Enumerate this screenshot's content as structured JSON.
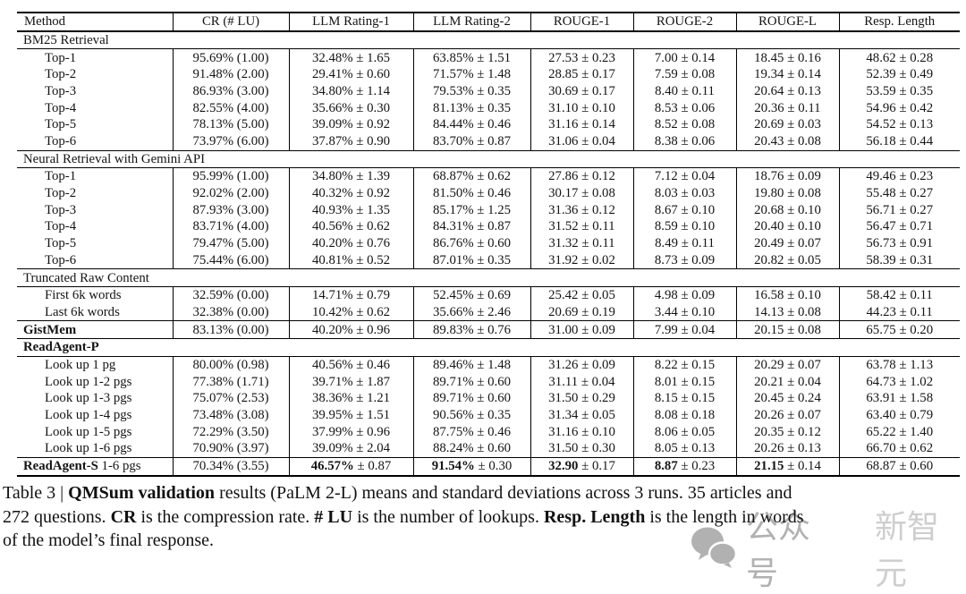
{
  "table": {
    "columns": [
      "Method",
      "CR (# LU)",
      "LLM Rating-1",
      "LLM Rating-2",
      "ROUGE-1",
      "ROUGE-2",
      "ROUGE-L",
      "Resp. Length"
    ],
    "rows": [
      {
        "kind": "section",
        "label": "BM25 Retrieval",
        "rule_below": true
      },
      {
        "kind": "data",
        "indent": true,
        "cells": [
          "Top-1",
          "95.69% (1.00)",
          "32.48% ± 1.65",
          "63.85% ± 1.51",
          "27.53 ± 0.23",
          "7.00 ± 0.14",
          "18.45 ± 0.16",
          "48.62 ± 0.28"
        ]
      },
      {
        "kind": "data",
        "indent": true,
        "cells": [
          "Top-2",
          "91.48% (2.00)",
          "29.41% ± 0.60",
          "71.57% ± 1.48",
          "28.85 ± 0.17",
          "7.59 ± 0.08",
          "19.34 ± 0.14",
          "52.39 ± 0.49"
        ]
      },
      {
        "kind": "data",
        "indent": true,
        "cells": [
          "Top-3",
          "86.93% (3.00)",
          "34.80% ± 1.14",
          "79.53% ± 0.35",
          "30.69 ± 0.17",
          "8.40 ± 0.11",
          "20.64 ± 0.13",
          "53.59 ± 0.35"
        ]
      },
      {
        "kind": "data",
        "indent": true,
        "cells": [
          "Top-4",
          "82.55% (4.00)",
          "35.66% ± 0.30",
          "81.13% ± 0.35",
          "31.10 ± 0.10",
          "8.53 ± 0.06",
          "20.36 ± 0.11",
          "54.96 ± 0.42"
        ]
      },
      {
        "kind": "data",
        "indent": true,
        "cells": [
          "Top-5",
          "78.13% (5.00)",
          "39.09% ± 0.92",
          "84.44% ± 0.46",
          "31.16 ± 0.14",
          "8.52 ± 0.08",
          "20.69 ± 0.03",
          "54.52 ± 0.13"
        ]
      },
      {
        "kind": "data",
        "indent": true,
        "rule_below": true,
        "cells": [
          "Top-6",
          "73.97% (6.00)",
          "37.87% ± 0.90",
          "83.70% ± 0.87",
          "31.06 ± 0.04",
          "8.38 ± 0.06",
          "20.43 ± 0.08",
          "56.18 ± 0.44"
        ]
      },
      {
        "kind": "section",
        "label": "Neural Retrieval with Gemini API",
        "rule_below": true
      },
      {
        "kind": "data",
        "indent": true,
        "cells": [
          "Top-1",
          "95.99% (1.00)",
          "34.80% ± 1.39",
          "68.87% ± 0.62",
          "27.86 ± 0.12",
          "7.12 ± 0.04",
          "18.76 ± 0.09",
          "49.46 ± 0.23"
        ]
      },
      {
        "kind": "data",
        "indent": true,
        "cells": [
          "Top-2",
          "92.02% (2.00)",
          "40.32% ± 0.92",
          "81.50% ± 0.46",
          "30.17 ± 0.08",
          "8.03 ± 0.03",
          "19.80 ± 0.08",
          "55.48 ± 0.27"
        ]
      },
      {
        "kind": "data",
        "indent": true,
        "cells": [
          "Top-3",
          "87.93% (3.00)",
          "40.93% ± 1.35",
          "85.17% ± 1.25",
          "31.36 ± 0.12",
          "8.67 ± 0.10",
          "20.68 ± 0.10",
          "56.71 ± 0.27"
        ]
      },
      {
        "kind": "data",
        "indent": true,
        "cells": [
          "Top-4",
          "83.71% (4.00)",
          "40.56% ± 0.62",
          "84.31% ± 0.87",
          "31.52 ± 0.11",
          "8.59 ± 0.10",
          "20.40 ± 0.10",
          "56.47 ± 0.71"
        ]
      },
      {
        "kind": "data",
        "indent": true,
        "cells": [
          "Top-5",
          "79.47% (5.00)",
          "40.20% ± 0.76",
          "86.76% ± 0.60",
          "31.32 ± 0.11",
          "8.49 ± 0.11",
          "20.49 ± 0.07",
          "56.73 ± 0.91"
        ]
      },
      {
        "kind": "data",
        "indent": true,
        "rule_below": true,
        "cells": [
          "Top-6",
          "75.44% (6.00)",
          "40.81% ± 0.52",
          "87.01% ± 0.35",
          "31.92 ± 0.02",
          "8.73 ± 0.09",
          "20.82 ± 0.05",
          "58.39 ± 0.31"
        ]
      },
      {
        "kind": "section",
        "label": "Truncated Raw Content",
        "rule_below": true
      },
      {
        "kind": "data",
        "indent": true,
        "cells": [
          "First 6k words",
          "32.59% (0.00)",
          "14.71% ± 0.79",
          "52.45% ± 0.69",
          "25.42 ± 0.05",
          "4.98 ± 0.09",
          "16.58 ± 0.10",
          "58.42 ± 0.11"
        ]
      },
      {
        "kind": "data",
        "indent": true,
        "rule_below": true,
        "cells": [
          "Last 6k words",
          "32.38% (0.00)",
          "10.42% ± 0.62",
          "35.66% ± 2.46",
          "20.69 ± 0.19",
          "3.44 ± 0.10",
          "14.13 ± 0.08",
          "44.23 ± 0.11"
        ]
      },
      {
        "kind": "data",
        "indent": false,
        "rule_below": true,
        "cells": [
          "**GistMem**",
          "83.13% (0.00)",
          "40.20% ± 0.96",
          "89.83% ± 0.76",
          "31.00 ± 0.09",
          "7.99 ± 0.04",
          "20.15 ± 0.08",
          "65.75 ± 0.20"
        ]
      },
      {
        "kind": "section",
        "label": "**ReadAgent-P**",
        "rule_below": true
      },
      {
        "kind": "data",
        "indent": true,
        "cells": [
          "Look up 1 pg",
          "80.00% (0.98)",
          "40.56% ± 0.46",
          "89.46% ± 1.48",
          "31.26 ± 0.09",
          "8.22 ± 0.15",
          "20.29 ± 0.07",
          "63.78 ± 1.13"
        ]
      },
      {
        "kind": "data",
        "indent": true,
        "cells": [
          "Look up 1-2 pgs",
          "77.38% (1.71)",
          "39.71% ± 1.87",
          "89.71% ± 0.60",
          "31.11 ± 0.04",
          "8.01 ± 0.15",
          "20.21 ± 0.04",
          "64.73 ± 1.02"
        ]
      },
      {
        "kind": "data",
        "indent": true,
        "cells": [
          "Look up 1-3 pgs",
          "75.07% (2.53)",
          "38.36% ± 1.21",
          "89.71% ± 0.60",
          "31.50 ± 0.29",
          "8.15 ± 0.15",
          "20.45 ± 0.24",
          "63.91 ± 1.58"
        ]
      },
      {
        "kind": "data",
        "indent": true,
        "cells": [
          "Look up 1-4 pgs",
          "73.48% (3.08)",
          "39.95% ± 1.51",
          "90.56% ± 0.35",
          "31.34 ± 0.05",
          "8.08 ± 0.18",
          "20.26 ± 0.07",
          "63.40 ± 0.79"
        ]
      },
      {
        "kind": "data",
        "indent": true,
        "cells": [
          "Look up 1-5 pgs",
          "72.29% (3.50)",
          "37.99% ± 0.96",
          "87.75% ± 0.46",
          "31.16 ± 0.10",
          "8.06 ± 0.05",
          "20.35 ± 0.12",
          "65.22 ± 1.40"
        ]
      },
      {
        "kind": "data",
        "indent": true,
        "rule_below": true,
        "cells": [
          "Look up 1-6 pgs",
          "70.90% (3.97)",
          "39.09% ± 2.04",
          "88.24% ± 0.60",
          "31.50 ± 0.30",
          "8.05 ± 0.13",
          "20.26 ± 0.13",
          "66.70 ± 0.62"
        ]
      },
      {
        "kind": "data",
        "indent": false,
        "cells": [
          "**ReadAgent-S** 1-6 pgs",
          "70.34% (3.55)",
          "**46.57%** ± 0.87",
          "**91.54%** ± 0.30",
          "**32.90** ± 0.17",
          "**8.87** ± 0.23",
          "**21.15** ± 0.14",
          "68.87 ± 0.60"
        ]
      }
    ]
  },
  "caption": {
    "lines": [
      "Table 3 | **QMSum validation** results (PaLM 2-L) means and standard deviations across 3 runs. 35 articles and",
      "272 questions. **CR** is the compression rate. **# LU** is the number of lookups. **Resp. Length** is the length in words",
      "of the model’s final response."
    ]
  },
  "watermark": {
    "wechat_label": "公众号",
    "brand": "新智元",
    "icon": "wechat-icon",
    "color_dark": "#9e9e9e",
    "color_light": "#c3c3c3"
  }
}
